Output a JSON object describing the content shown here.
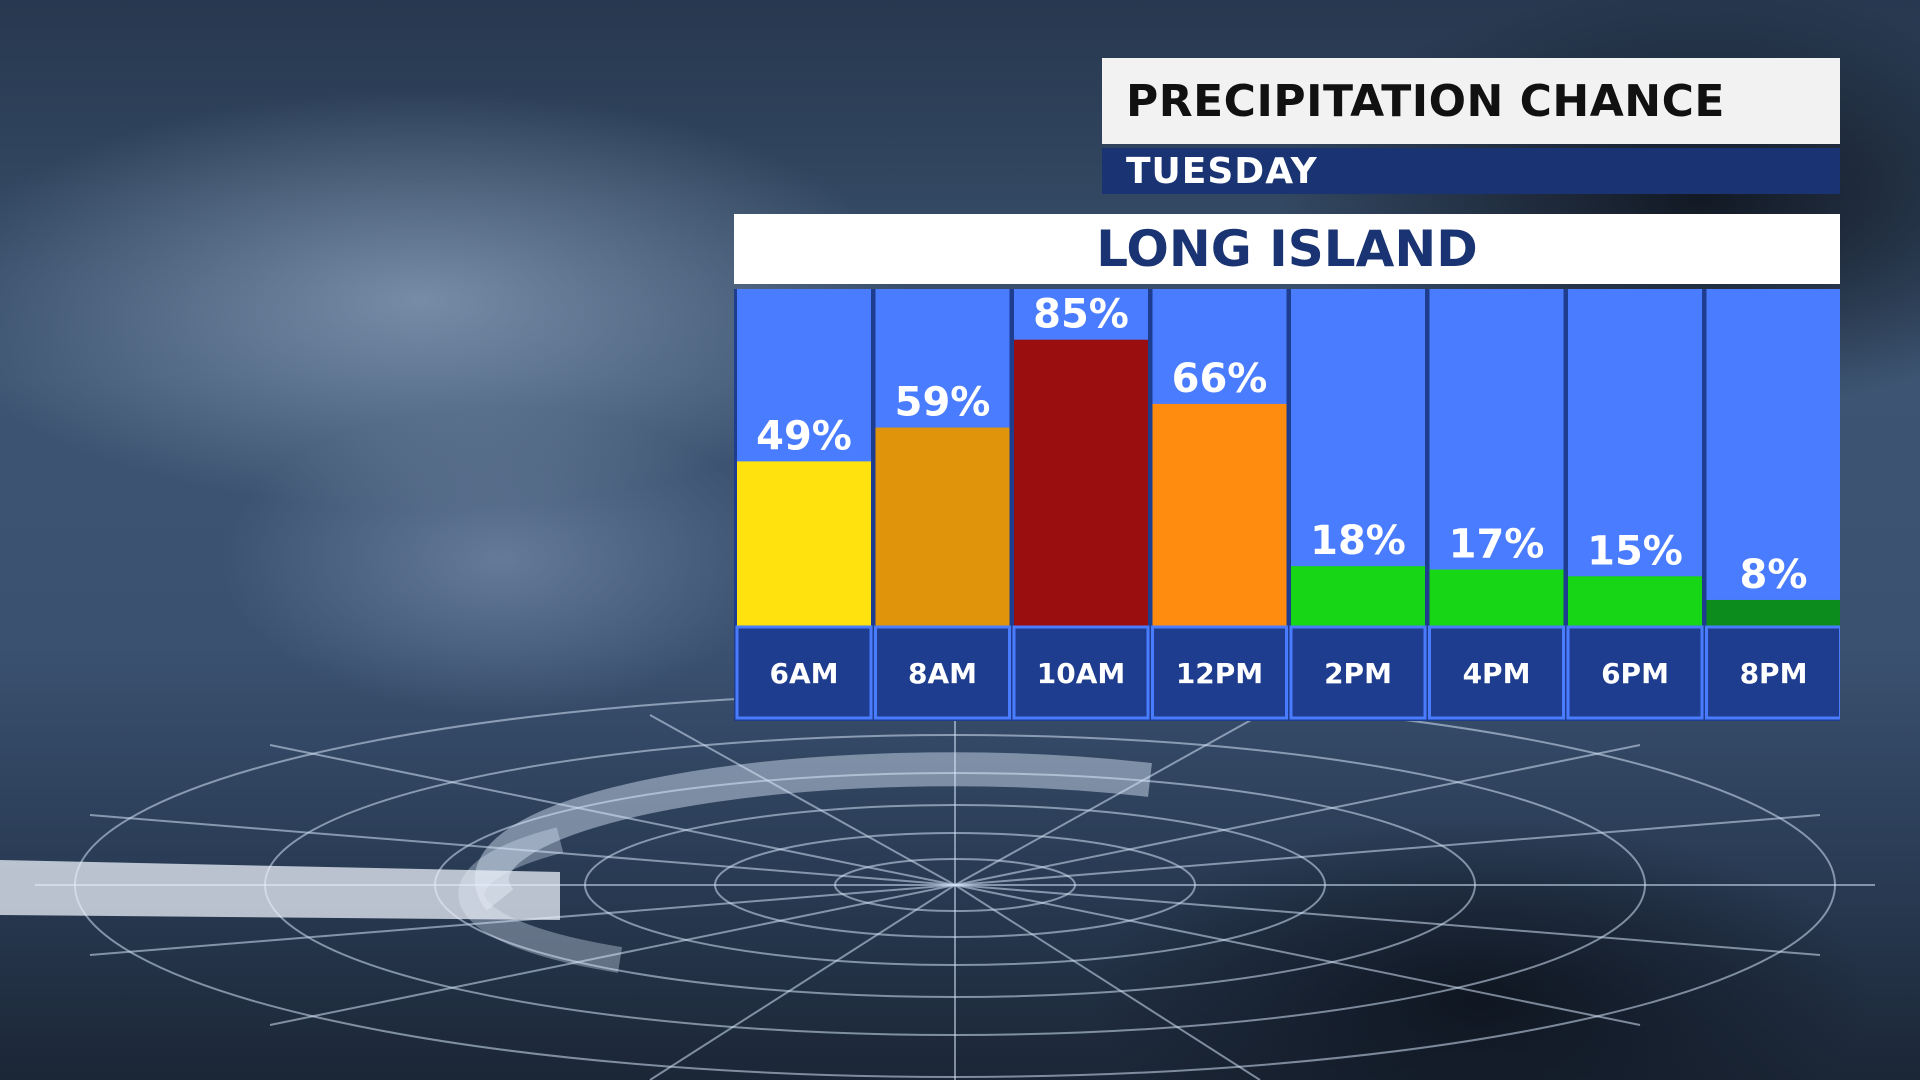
{
  "header": {
    "title": "PRECIPITATION CHANCE",
    "day": "TUESDAY"
  },
  "region": "LONG ISLAND",
  "colors": {
    "column_bg": "#4a7cff",
    "label_band": "#1e3d8f",
    "header_band": "#1a3372"
  },
  "chart_data": {
    "type": "bar",
    "categories": [
      "6AM",
      "8AM",
      "10AM",
      "12PM",
      "2PM",
      "4PM",
      "6PM",
      "8PM"
    ],
    "values": [
      49,
      59,
      85,
      66,
      18,
      17,
      15,
      8
    ],
    "value_labels": [
      "49%",
      "59%",
      "85%",
      "66%",
      "18%",
      "17%",
      "15%",
      "8%"
    ],
    "bar_colors": [
      "#ffe20e",
      "#e0940c",
      "#9a0e10",
      "#ff8b0f",
      "#16d616",
      "#16d616",
      "#16d616",
      "#0c8c1c"
    ],
    "ylim": [
      0,
      100
    ],
    "grid": false,
    "legend": "none"
  }
}
